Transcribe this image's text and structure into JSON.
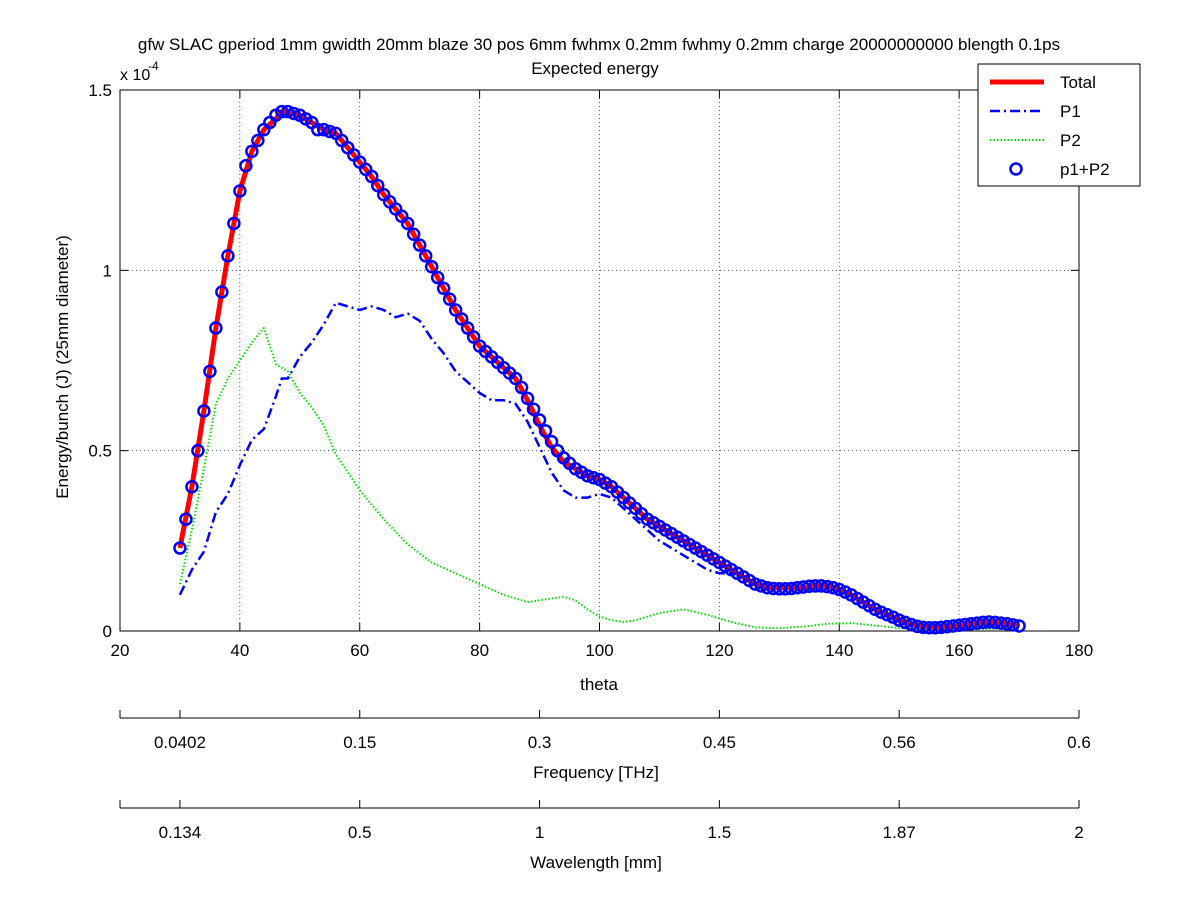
{
  "chart_data": {
    "type": "line",
    "title": "gfw SLAC gperiod 1mm gwidth 20mm blaze 30 pos 6mm fwhmx 0.2mm fwhmy 0.2mm charge 20000000000 blength 0.1ps",
    "subtitle": "Expected energy",
    "xlabel": "theta",
    "ylabel": "Energy/bunch (J) (25mm diameter)",
    "y_multiplier": "x 10",
    "y_exponent": "-4",
    "xlim": [
      20,
      180
    ],
    "ylim": [
      0,
      1.5
    ],
    "x_ticks": [
      "20",
      "40",
      "60",
      "80",
      "100",
      "120",
      "140",
      "160",
      "180"
    ],
    "y_ticks": [
      "0",
      "0.5",
      "1",
      "1.5"
    ],
    "grid": true,
    "legend_position": "top-right",
    "series": [
      {
        "name": "Total",
        "color": "#ff0000",
        "style": "solid",
        "x": [
          30,
          32,
          34,
          36,
          38,
          40,
          42,
          44,
          46,
          47,
          48,
          50,
          52,
          54,
          56,
          58,
          60,
          62,
          64,
          66,
          68,
          70,
          72,
          74,
          76,
          78,
          80,
          82,
          84,
          86,
          88,
          90,
          92,
          94,
          96,
          98,
          100,
          102,
          104,
          106,
          108,
          110,
          112,
          114,
          116,
          118,
          120,
          122,
          124,
          126,
          128,
          130,
          132,
          134,
          136,
          138,
          140,
          142,
          144,
          146,
          148,
          150,
          152,
          154,
          156,
          158,
          160,
          162,
          164,
          166,
          168,
          170
        ],
        "y": [
          0.23,
          0.4,
          0.61,
          0.84,
          1.04,
          1.22,
          1.33,
          1.39,
          1.42,
          1.44,
          1.44,
          1.43,
          1.41,
          1.39,
          1.38,
          1.34,
          1.3,
          1.26,
          1.21,
          1.17,
          1.13,
          1.07,
          1.01,
          0.95,
          0.89,
          0.84,
          0.79,
          0.76,
          0.73,
          0.7,
          0.64,
          0.57,
          0.51,
          0.47,
          0.45,
          0.43,
          0.42,
          0.4,
          0.37,
          0.34,
          0.31,
          0.29,
          0.27,
          0.25,
          0.23,
          0.21,
          0.19,
          0.17,
          0.15,
          0.13,
          0.12,
          0.12,
          0.12,
          0.12,
          0.125,
          0.125,
          0.115,
          0.1,
          0.08,
          0.06,
          0.045,
          0.03,
          0.02,
          0.012,
          0.01,
          0.012,
          0.015,
          0.02,
          0.025,
          0.023,
          0.02,
          0.015
        ]
      },
      {
        "name": "P1",
        "color": "#0000ff",
        "style": "dashdot",
        "x": [
          30,
          32,
          34,
          36,
          38,
          40,
          42,
          44,
          46,
          47,
          48,
          50,
          52,
          54,
          56,
          58,
          60,
          62,
          64,
          66,
          68,
          70,
          72,
          74,
          76,
          78,
          80,
          82,
          84,
          86,
          88,
          90,
          92,
          94,
          96,
          98,
          100,
          102,
          104,
          106,
          108,
          110,
          112,
          114,
          116,
          118,
          120,
          122
        ],
        "y": [
          0.1,
          0.17,
          0.22,
          0.33,
          0.38,
          0.46,
          0.53,
          0.56,
          0.65,
          0.7,
          0.7,
          0.76,
          0.8,
          0.85,
          0.91,
          0.9,
          0.89,
          0.9,
          0.89,
          0.87,
          0.88,
          0.86,
          0.81,
          0.77,
          0.72,
          0.69,
          0.66,
          0.64,
          0.64,
          0.63,
          0.58,
          0.51,
          0.44,
          0.39,
          0.37,
          0.37,
          0.38,
          0.37,
          0.34,
          0.31,
          0.28,
          0.25,
          0.23,
          0.21,
          0.19,
          0.17,
          0.16,
          0.16
        ]
      },
      {
        "name": "P2",
        "color": "#00dd00",
        "style": "dotted",
        "x": [
          30,
          32,
          34,
          36,
          38,
          40,
          42,
          44,
          46,
          48,
          50,
          52,
          54,
          56,
          58,
          60,
          64,
          68,
          72,
          76,
          80,
          84,
          88,
          92,
          94,
          96,
          98,
          100,
          102,
          104,
          106,
          110,
          114,
          118,
          122,
          126,
          130,
          134,
          138,
          142,
          146,
          150,
          154,
          158,
          162,
          166,
          170
        ],
        "y": [
          0.13,
          0.28,
          0.45,
          0.63,
          0.7,
          0.75,
          0.8,
          0.84,
          0.74,
          0.72,
          0.66,
          0.62,
          0.57,
          0.49,
          0.44,
          0.39,
          0.31,
          0.24,
          0.19,
          0.16,
          0.13,
          0.1,
          0.08,
          0.09,
          0.095,
          0.085,
          0.06,
          0.04,
          0.03,
          0.025,
          0.03,
          0.05,
          0.06,
          0.045,
          0.025,
          0.01,
          0.008,
          0.012,
          0.02,
          0.022,
          0.015,
          0.008,
          0.004,
          0.003,
          0.005,
          0.006,
          0.004
        ]
      },
      {
        "name": "p1+P2",
        "color": "#0000ff",
        "style": "circles",
        "x": [
          30,
          31,
          32,
          33,
          34,
          35,
          36,
          37,
          38,
          39,
          40,
          41,
          42,
          43,
          44,
          45,
          46,
          47,
          48,
          49,
          50,
          51,
          52,
          53,
          54,
          55,
          56,
          57,
          58,
          59,
          60,
          61,
          62,
          63,
          64,
          65,
          66,
          67,
          68,
          69,
          70,
          71,
          72,
          73,
          74,
          75,
          76,
          77,
          78,
          79,
          80,
          81,
          82,
          83,
          84,
          85,
          86,
          87,
          88,
          89,
          90,
          91,
          92,
          93,
          94,
          95,
          96,
          97,
          98,
          99,
          100,
          101,
          102,
          103,
          104,
          105,
          106,
          107,
          108,
          109,
          110,
          111,
          112,
          113,
          114,
          115,
          116,
          117,
          118,
          119,
          120,
          121,
          122,
          123,
          124,
          125,
          126,
          127,
          128,
          129,
          130,
          131,
          132,
          133,
          134,
          135,
          136,
          137,
          138,
          139,
          140,
          141,
          142,
          143,
          144,
          145,
          146,
          147,
          148,
          149,
          150,
          151,
          152,
          153,
          154,
          155,
          156,
          157,
          158,
          159,
          160,
          161,
          162,
          163,
          164,
          165,
          166,
          167,
          168,
          169,
          170
        ],
        "y": [
          0.23,
          0.31,
          0.4,
          0.5,
          0.61,
          0.72,
          0.84,
          0.94,
          1.04,
          1.13,
          1.22,
          1.29,
          1.33,
          1.36,
          1.39,
          1.41,
          1.43,
          1.44,
          1.44,
          1.435,
          1.43,
          1.42,
          1.41,
          1.39,
          1.39,
          1.385,
          1.38,
          1.36,
          1.34,
          1.32,
          1.3,
          1.28,
          1.26,
          1.235,
          1.21,
          1.19,
          1.17,
          1.15,
          1.13,
          1.1,
          1.07,
          1.04,
          1.01,
          0.98,
          0.95,
          0.92,
          0.89,
          0.865,
          0.84,
          0.815,
          0.79,
          0.775,
          0.76,
          0.745,
          0.73,
          0.715,
          0.7,
          0.675,
          0.645,
          0.615,
          0.585,
          0.555,
          0.525,
          0.5,
          0.48,
          0.465,
          0.45,
          0.44,
          0.43,
          0.425,
          0.42,
          0.41,
          0.4,
          0.385,
          0.37,
          0.355,
          0.34,
          0.325,
          0.31,
          0.3,
          0.29,
          0.28,
          0.27,
          0.26,
          0.25,
          0.24,
          0.23,
          0.22,
          0.21,
          0.2,
          0.19,
          0.18,
          0.17,
          0.16,
          0.15,
          0.14,
          0.13,
          0.125,
          0.12,
          0.118,
          0.117,
          0.117,
          0.118,
          0.12,
          0.122,
          0.124,
          0.125,
          0.125,
          0.123,
          0.12,
          0.115,
          0.108,
          0.1,
          0.09,
          0.08,
          0.07,
          0.06,
          0.052,
          0.045,
          0.038,
          0.03,
          0.024,
          0.018,
          0.013,
          0.01,
          0.009,
          0.009,
          0.01,
          0.012,
          0.014,
          0.016,
          0.018,
          0.02,
          0.022,
          0.024,
          0.025,
          0.024,
          0.022,
          0.02,
          0.017,
          0.014
        ]
      }
    ],
    "secondary_axes": [
      {
        "label": "Frequency [THz]",
        "ticks": [
          "0.0402",
          "0.15",
          "0.3",
          "0.45",
          "0.56",
          "0.6"
        ],
        "tick_theta": [
          30,
          60,
          90,
          120,
          150,
          180
        ],
        "frame_ticks_theta": [
          20,
          180
        ]
      },
      {
        "label": "Wavelength [mm]",
        "ticks": [
          "0.134",
          "0.5",
          "1",
          "1.5",
          "1.87",
          "2"
        ],
        "tick_theta": [
          30,
          60,
          90,
          120,
          150,
          180
        ],
        "frame_ticks_theta": [
          20,
          180
        ]
      }
    ]
  }
}
